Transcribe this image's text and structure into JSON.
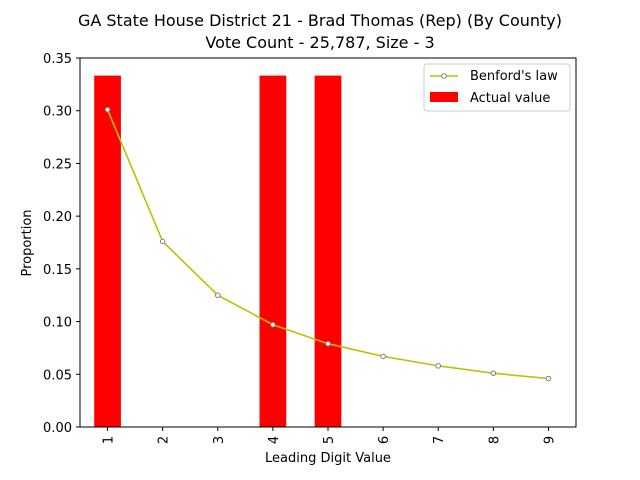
{
  "chart_data": {
    "type": "bar",
    "title": "GA State House District 21 - Brad Thomas (Rep) (By County)",
    "subtitle": "Vote Count - 25,787, Size - 3",
    "xlabel": "Leading Digit Value",
    "ylabel": "Proportion",
    "categories": [
      "1",
      "2",
      "3",
      "4",
      "5",
      "6",
      "7",
      "8",
      "9"
    ],
    "ylim": [
      0,
      0.35
    ],
    "yticks": [
      "0.00",
      "0.05",
      "0.10",
      "0.15",
      "0.20",
      "0.25",
      "0.30",
      "0.35"
    ],
    "legend_position": "top-right",
    "grid": false,
    "series": [
      {
        "name": "Benford's law",
        "kind": "line",
        "color": "#bfbf00",
        "values": [
          0.301,
          0.176,
          0.125,
          0.097,
          0.079,
          0.067,
          0.058,
          0.051,
          0.046
        ]
      },
      {
        "name": "Actual value",
        "kind": "bar",
        "color": "#ff0000",
        "values": [
          0.3333,
          0,
          0,
          0.3333,
          0.3333,
          0,
          0,
          0,
          0
        ]
      }
    ]
  }
}
